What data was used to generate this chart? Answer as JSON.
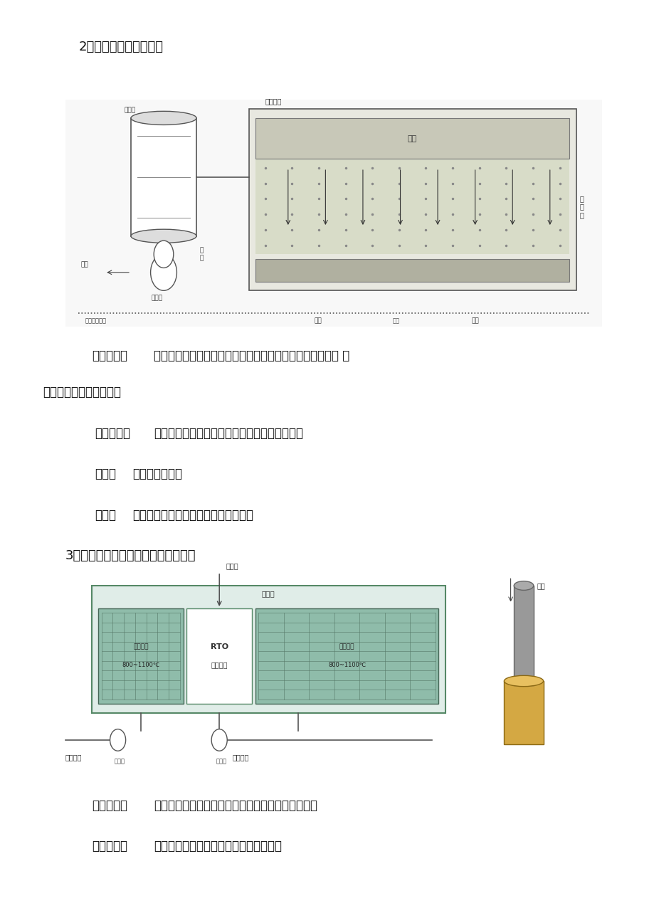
{
  "bg_color": "#ffffff",
  "title_section1": "2脱臭方法：稀释扩散法",
  "title_section2": "3脱臭方法：热力燃烧法、催化燃烧法",
  "text_blocks": [
    {
      "label": "脱臭原理：",
      "content": "将有臭味地气体通过烟囱排至大气，或用无臭空气稀释，降 低\n恶臭物质浓度以减少臭味",
      "indent": 0.12,
      "bold_label": true
    },
    {
      "label": "适用范围：",
      "content": "适用于处理中、低浓度的有组织排放的恶臭气体",
      "indent": 0.14,
      "bold_label": true
    },
    {
      "label": "优点：",
      "content": "费用低设备简单",
      "indent": 0.14,
      "bold_label": true
    },
    {
      "label": "缺点：",
      "content": "易受气象条件限制，恶臭物质依然存在",
      "indent": 0.14,
      "bold_label": true
    }
  ],
  "text_blocks2": [
    {
      "label": "脱臭原理：",
      "content": "在高温下恶臭物质与燃料气充分混和，实现完全燃烧",
      "indent": 0.12,
      "bold_label": true
    },
    {
      "label": "适用范围：",
      "content": "适用于处理高浓度、小气量的可燃性气体",
      "indent": 0.12,
      "bold_label": true
    }
  ],
  "font_size_title": 13,
  "font_size_text": 12,
  "font_size_label": 12
}
